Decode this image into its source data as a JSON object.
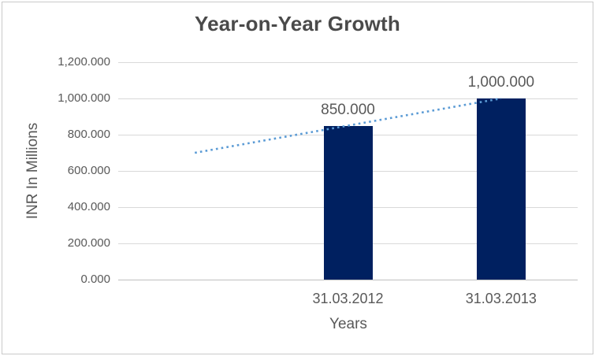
{
  "chart_data": {
    "type": "bar",
    "title": "Year-on-Year Growth",
    "xlabel": "Years",
    "ylabel": "INR In Millions",
    "categories": [
      "31.03.2012",
      "31.03.2013"
    ],
    "values": [
      850,
      1000
    ],
    "data_labels": [
      "850.000",
      "1,000.000"
    ],
    "ylim": [
      0,
      1200
    ],
    "ytick_step": 200,
    "ytick_labels": [
      "0.000",
      "200.000",
      "400.000",
      "600.000",
      "800.000",
      "1,000.000",
      "1,200.000"
    ],
    "grid": true,
    "legend": "none",
    "category_slots": 3,
    "bar_slot_start": 1,
    "trendline": {
      "style": "dotted",
      "color": "#5B9BD5",
      "slot_values": [
        700,
        850,
        1000
      ],
      "note": "linear trendline extending one period before first category"
    },
    "colors": {
      "bar": "#002060",
      "gridline": "#D9D9D9",
      "axis_line": "#BFBFBF",
      "text": "#595959",
      "title": "#4A4A4A",
      "frame_border": "#C9C9C9",
      "background": "#FFFFFF"
    }
  }
}
